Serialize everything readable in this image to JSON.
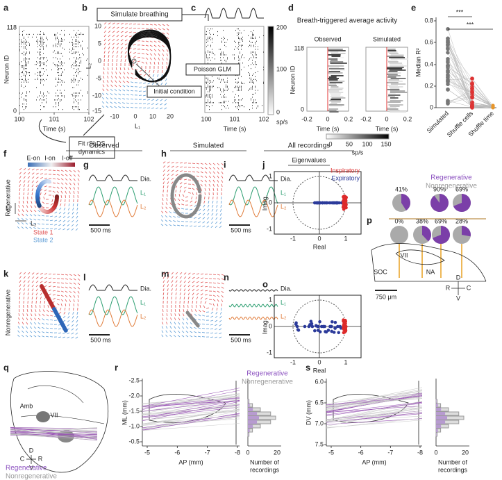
{
  "a": {
    "label": "a",
    "y_label": "Neuron ID",
    "y_ticks": [
      "118",
      "0"
    ],
    "x_ticks": [
      "100",
      "101",
      "102"
    ],
    "x_label": "Time (s)"
  },
  "b": {
    "label": "b",
    "simulate": "Simulate breathing",
    "initial": "Initial condition",
    "fit": [
      "Fit rSLDS",
      "dynamics"
    ],
    "y_label": "L₂",
    "y_ticks": [
      "10",
      "5",
      "0",
      "-5",
      "-10",
      "-15"
    ],
    "x_ticks": [
      "-10",
      "0",
      "10",
      "20"
    ],
    "x_label": "L₁"
  },
  "c": {
    "label": "c",
    "glm": "Poisson GLM",
    "colorbar_ticks": [
      "200",
      "100",
      "0"
    ],
    "colorbar_unit": "sp/s",
    "x_ticks": [
      "100",
      "101",
      "102"
    ],
    "x_label": "Time (s)"
  },
  "d": {
    "label": "d",
    "title": "Breath-triggered average activity",
    "observed": "Observed",
    "simulated": "Simulated",
    "y_label": "Neuron ID",
    "y_ticks": [
      "118",
      "0"
    ],
    "x_ticks": [
      "-0.2",
      "0",
      "0.2"
    ],
    "x_label": "Time (s)",
    "colorbar_ticks": [
      "0",
      "50",
      "100",
      "150"
    ],
    "colorbar_unit": "sp/s"
  },
  "e": {
    "label": "e",
    "y_label": "Median R²",
    "y_ticks": [
      "0.8",
      "0.6",
      "0.4",
      "0.2",
      "0"
    ],
    "categories": [
      "Simulated",
      "Shuffle cells",
      "Shuffle time"
    ],
    "significance": [
      "***",
      "***"
    ]
  },
  "headers": {
    "observed": "Observed",
    "simulated": "Simulated",
    "all": "All recordings"
  },
  "f": {
    "label": "f",
    "row": "Regenerative",
    "legend": [
      "E-on",
      "I-on",
      "I-off"
    ],
    "states": [
      "State 1",
      "State 2"
    ],
    "axes": [
      "L₁",
      "L₂"
    ]
  },
  "g": {
    "label": "g",
    "traces": [
      "Dia.",
      "L₁",
      "L₂"
    ],
    "scale": "500 ms"
  },
  "h": {
    "label": "h"
  },
  "i": {
    "label": "i",
    "traces": [
      "Dia.",
      "L₁",
      "L₂"
    ],
    "scale": "500 ms"
  },
  "j": {
    "label": "j",
    "title": "Eigenvalues",
    "y_label": "Imag.",
    "y_ticks": [
      "1",
      "0",
      "-1"
    ],
    "x_ticks": [
      "-1",
      "0",
      "1"
    ],
    "x_label": "Real",
    "legend": [
      "Inspiratory",
      "Expiratory"
    ]
  },
  "k": {
    "label": "k",
    "row": "Nonregenerative"
  },
  "l": {
    "label": "l",
    "traces": [
      "Dia.",
      "L₁",
      "L₂"
    ],
    "scale": "500 ms"
  },
  "m": {
    "label": "m"
  },
  "n": {
    "label": "n",
    "traces": [
      "Dia.",
      "L₁",
      "L₂"
    ],
    "scale": "500 ms"
  },
  "o": {
    "label": "o",
    "y_label": "Imag.",
    "y_ticks": [
      "1",
      "0",
      "-1"
    ],
    "x_ticks": [
      "-1",
      "0",
      "1"
    ],
    "x_label": "Real"
  },
  "p": {
    "label": "p",
    "legend": [
      "Regenerative",
      "Nonregenerative"
    ],
    "pies": [
      {
        "value": 41,
        "label": "41%"
      },
      {
        "value": 90,
        "label": "90%"
      },
      {
        "value": 69,
        "label": "69%"
      },
      {
        "value": 0,
        "label": "0%"
      },
      {
        "value": 38,
        "label": "38%"
      },
      {
        "value": 69,
        "label": "69%"
      },
      {
        "value": 28,
        "label": "28%"
      }
    ],
    "regions": [
      "SOC",
      "VII",
      "NA"
    ],
    "scale": "750 μm",
    "compass": [
      "D",
      "R",
      "C",
      "V"
    ]
  },
  "q": {
    "label": "q",
    "regions": [
      "Amb",
      "VII"
    ],
    "compass": [
      "D",
      "C",
      "R",
      "V"
    ],
    "legend": [
      "Regenerative",
      "Nonregenerative"
    ]
  },
  "r": {
    "label": "r",
    "y_label": "ML (mm)",
    "y_ticks": [
      "-2.5",
      "-2.0",
      "-1.5",
      "-1.0",
      "-0.5"
    ],
    "x_ticks": [
      "-5",
      "-6",
      "-7",
      "-8"
    ],
    "x_label": "AP (mm)",
    "hist_ticks": [
      "0",
      "20"
    ],
    "hist_label": [
      "Number of",
      "recordings"
    ],
    "legend": [
      "Regenerative",
      "Nonregenerative"
    ]
  },
  "s": {
    "label": "s",
    "y_label": "DV (mm)",
    "y_ticks": [
      "6.0",
      "6.5",
      "7.0",
      "7.5"
    ],
    "x_ticks": [
      "-5",
      "-6",
      "-7",
      "-8"
    ],
    "x_label": "AP (mm)",
    "hist_ticks": [
      "0",
      "20"
    ],
    "hist_label": [
      "Number of",
      "recordings"
    ]
  }
}
